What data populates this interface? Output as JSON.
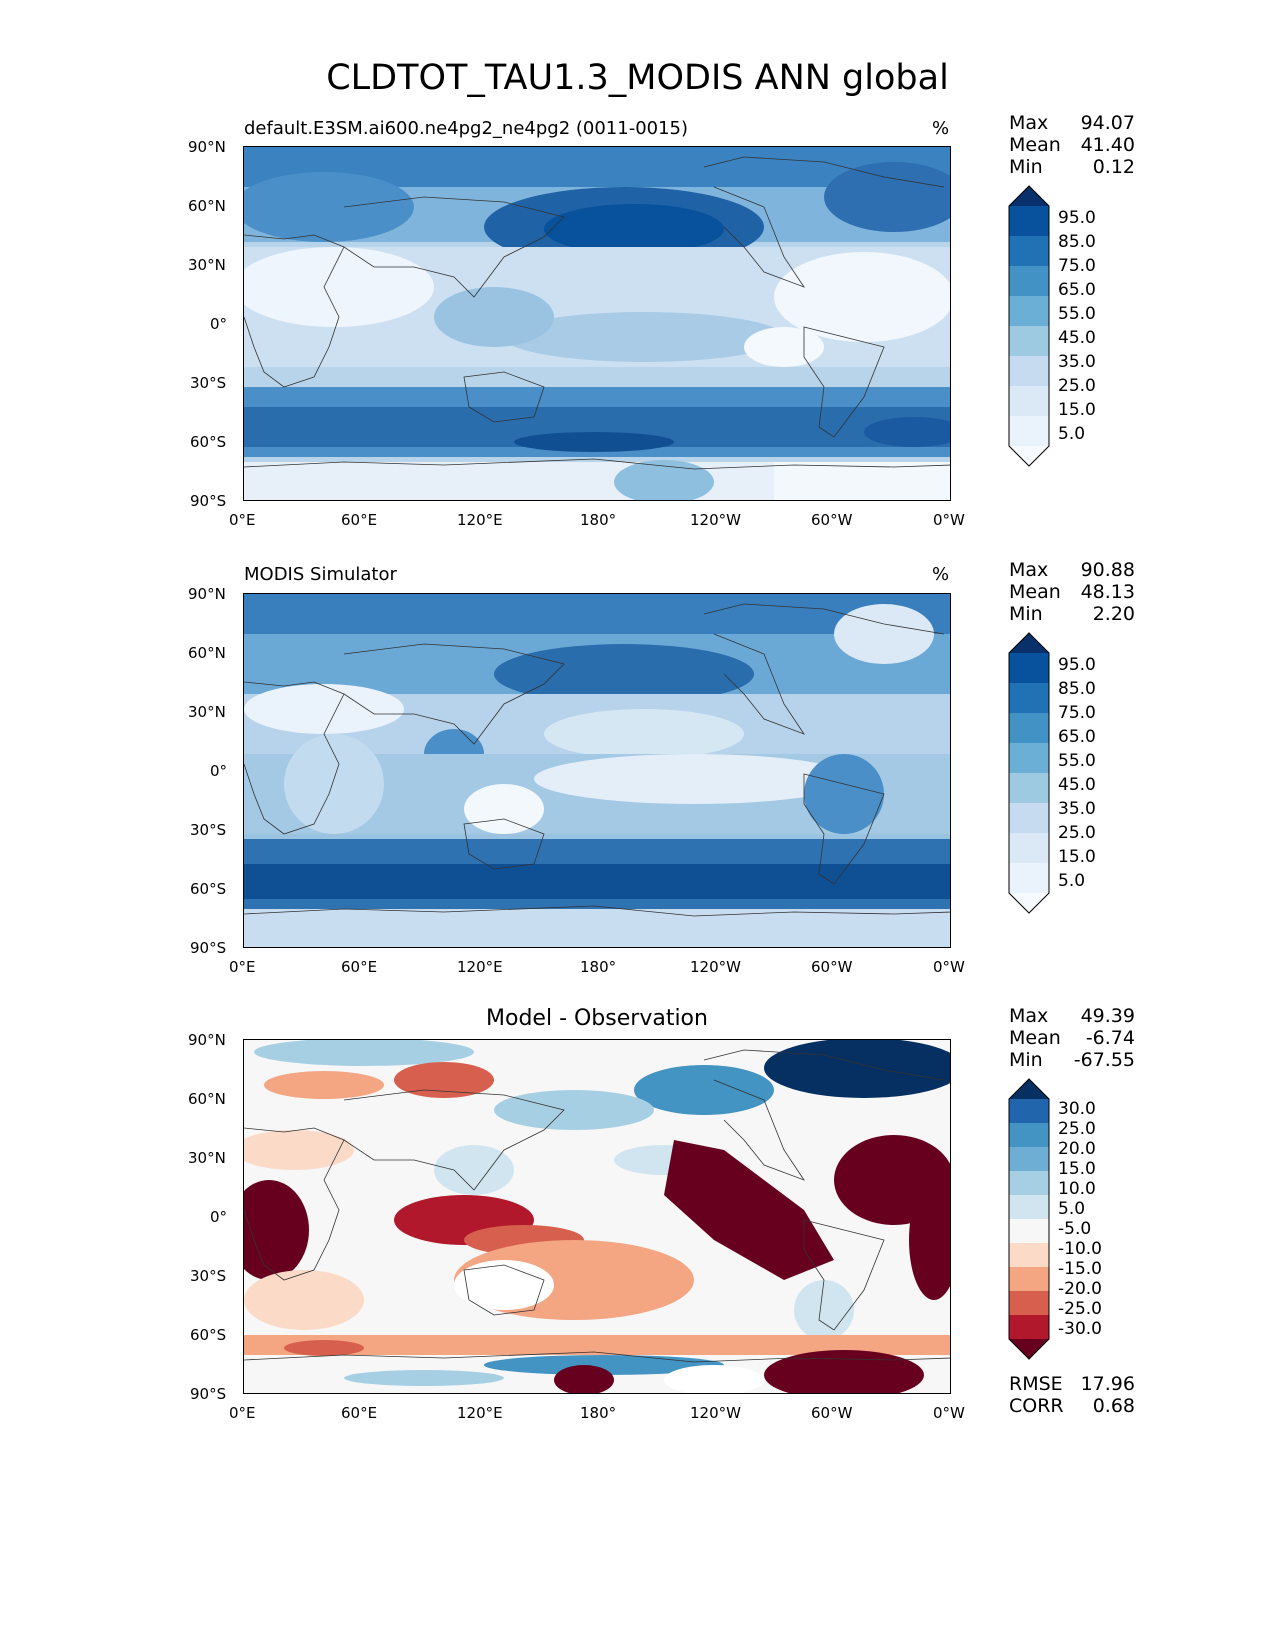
{
  "title": "CLDTOT_TAU1.3_MODIS ANN global",
  "lon_ticks": [
    "0°E",
    "60°E",
    "120°E",
    "180°",
    "120°W",
    "60°W",
    "0°W"
  ],
  "lat_ticks": [
    "90°N",
    "60°N",
    "30°N",
    "0°",
    "30°S",
    "60°S",
    "90°S"
  ],
  "panels": [
    {
      "title": "default.E3SM.ai600.ne4pg2_ne4pg2 (0011-0015)",
      "units": "%",
      "stats": {
        "max_label": "Max",
        "max": "94.07",
        "mean_label": "Mean",
        "mean": "41.40",
        "min_label": "Min",
        "min": "0.12"
      },
      "colorbar": {
        "levels": [
          "95.0",
          "85.0",
          "75.0",
          "65.0",
          "55.0",
          "45.0",
          "35.0",
          "25.0",
          "15.0",
          "5.0"
        ],
        "colors": [
          "#08306b",
          "#08519c",
          "#2171b5",
          "#4292c6",
          "#6baed6",
          "#9ecae1",
          "#c6dbef",
          "#dbe9f6",
          "#eaf2fb",
          "#f7fbff"
        ]
      }
    },
    {
      "title": "MODIS Simulator",
      "units": "%",
      "stats": {
        "max_label": "Max",
        "max": "90.88",
        "mean_label": "Mean",
        "mean": "48.13",
        "min_label": "Min",
        "min": "2.20"
      },
      "colorbar": {
        "levels": [
          "95.0",
          "85.0",
          "75.0",
          "65.0",
          "55.0",
          "45.0",
          "35.0",
          "25.0",
          "15.0",
          "5.0"
        ],
        "colors": [
          "#08306b",
          "#08519c",
          "#2171b5",
          "#4292c6",
          "#6baed6",
          "#9ecae1",
          "#c6dbef",
          "#dbe9f6",
          "#eaf2fb",
          "#f7fbff"
        ]
      }
    },
    {
      "title": "Model - Observation",
      "units": "",
      "stats": {
        "max_label": "Max",
        "max": "49.39",
        "mean_label": "Mean",
        "mean": "-6.74",
        "min_label": "Min",
        "min": "-67.55"
      },
      "extra_stats": {
        "rmse_label": "RMSE",
        "rmse": "17.96",
        "corr_label": "CORR",
        "corr": "0.68"
      },
      "colorbar": {
        "levels": [
          "30.0",
          "25.0",
          "20.0",
          "15.0",
          "10.0",
          "5.0",
          "-5.0",
          "-10.0",
          "-15.0",
          "-20.0",
          "-25.0",
          "-30.0"
        ],
        "colors": [
          "#053061",
          "#2166ac",
          "#4393c3",
          "#6faed4",
          "#a7cfe4",
          "#d1e5f0",
          "#f7f7f7",
          "#fbdac8",
          "#f4a582",
          "#d6604d",
          "#b2182b",
          "#67001f"
        ]
      }
    }
  ]
}
